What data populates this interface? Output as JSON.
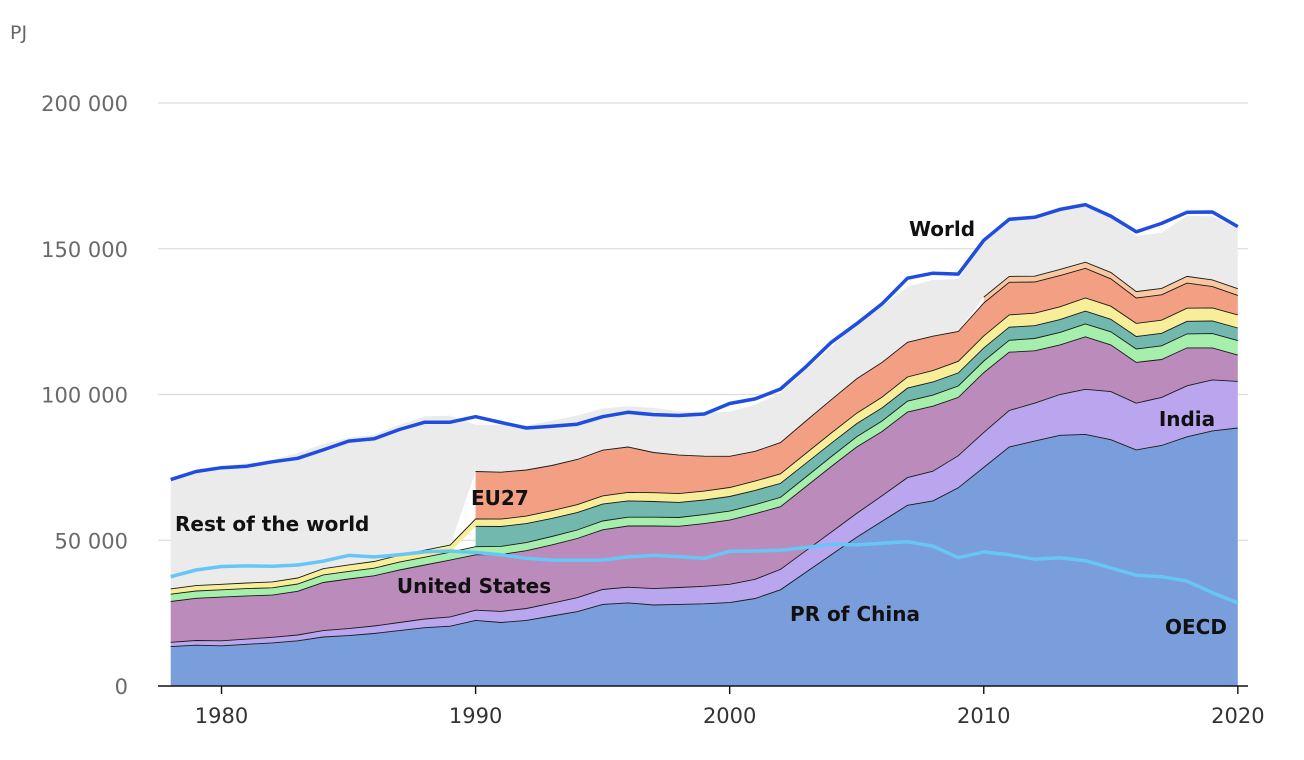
{
  "chart_data": {
    "type": "area",
    "unit": "PJ",
    "x": [
      1978,
      1979,
      1980,
      1981,
      1982,
      1983,
      1984,
      1985,
      1986,
      1987,
      1988,
      1989,
      1990,
      1991,
      1992,
      1993,
      1994,
      1995,
      1996,
      1997,
      1998,
      1999,
      2000,
      2001,
      2002,
      2003,
      2004,
      2005,
      2006,
      2007,
      2008,
      2009,
      2010,
      2011,
      2012,
      2013,
      2014,
      2015,
      2016,
      2017,
      2018,
      2019,
      2020
    ],
    "xticks": [
      "1980",
      "1990",
      "2000",
      "2010",
      "2020"
    ],
    "xlim": [
      1977.5,
      2020.4
    ],
    "ylim": [
      0,
      200000
    ],
    "yticks": [
      {
        "value": 0,
        "label": "0"
      },
      {
        "value": 50000,
        "label": "50 000"
      },
      {
        "value": 100000,
        "label": "100 000"
      },
      {
        "value": 150000,
        "label": "150 000"
      },
      {
        "value": 200000,
        "label": "200 000"
      }
    ],
    "grid": true,
    "stacked_series": [
      {
        "name": "PR of China",
        "color": "#7a9edc",
        "values": [
          13500,
          14000,
          13800,
          14300,
          14800,
          15500,
          16800,
          17300,
          18000,
          19000,
          20000,
          20500,
          22500,
          21800,
          22500,
          24000,
          25500,
          28000,
          28500,
          27800,
          28000,
          28200,
          28600,
          30000,
          33000,
          39000,
          45000,
          51000,
          56500,
          62000,
          63500,
          68000,
          75000,
          82000,
          84000,
          86000,
          86300,
          84500,
          81000,
          82500,
          85500,
          87500,
          88500
        ]
      },
      {
        "name": "India",
        "color": "#b9a6ee",
        "values": [
          1500,
          1600,
          1700,
          1800,
          1900,
          2000,
          2200,
          2400,
          2600,
          2800,
          3000,
          3200,
          3500,
          3800,
          4100,
          4400,
          4800,
          5100,
          5400,
          5600,
          5800,
          6000,
          6300,
          6600,
          7000,
          7400,
          7800,
          8200,
          8800,
          9500,
          10200,
          11000,
          12000,
          12500,
          13000,
          14000,
          15500,
          16500,
          16000,
          16500,
          17500,
          17500,
          16000
        ]
      },
      {
        "name": "United States",
        "color": "#bb8cbb",
        "values": [
          14000,
          14500,
          15000,
          14800,
          14500,
          15000,
          16500,
          17000,
          17200,
          18000,
          18500,
          19500,
          19000,
          19500,
          19800,
          20000,
          20300,
          20500,
          21000,
          21500,
          21000,
          21500,
          22000,
          22500,
          21500,
          22000,
          22500,
          22800,
          22000,
          22500,
          22300,
          20000,
          20500,
          20000,
          18000,
          17000,
          18000,
          16000,
          14000,
          13000,
          13000,
          11000,
          9000
        ]
      },
      {
        "name": "green",
        "color": "#a5eeab",
        "values": [
          2500,
          2500,
          2500,
          2500,
          2500,
          2500,
          2600,
          2600,
          2600,
          2700,
          2700,
          2700,
          2800,
          2800,
          2800,
          2900,
          2900,
          3000,
          3000,
          3000,
          3000,
          3100,
          3100,
          3100,
          3200,
          3300,
          3400,
          3500,
          3600,
          3700,
          3800,
          3900,
          4000,
          4100,
          4200,
          4300,
          4400,
          4500,
          4600,
          4700,
          4800,
          4900,
          5000
        ]
      },
      {
        "name": "teal",
        "color": "#72b8ae",
        "values": [
          0,
          0,
          0,
          0,
          0,
          0,
          0,
          0,
          0,
          0,
          0,
          0,
          7000,
          6800,
          6500,
          6200,
          6000,
          5800,
          5600,
          5400,
          5200,
          5000,
          5000,
          4900,
          4800,
          4700,
          4600,
          4500,
          4500,
          4500,
          4500,
          4500,
          4500,
          4500,
          4400,
          4400,
          4400,
          4300,
          4300,
          4300,
          4300,
          4300,
          4300
        ]
      },
      {
        "name": "yellow",
        "color": "#f8ee9a",
        "values": [
          1800,
          1850,
          1900,
          1950,
          2000,
          2050,
          2150,
          2250,
          2300,
          2350,
          2400,
          2450,
          2500,
          2550,
          2600,
          2650,
          2700,
          2800,
          2900,
          3000,
          3000,
          3050,
          3100,
          3200,
          3300,
          3400,
          3500,
          3600,
          3700,
          3800,
          3900,
          4000,
          4100,
          4200,
          4300,
          4400,
          4500,
          4500,
          4500,
          4500,
          4500,
          4500,
          4500
        ]
      },
      {
        "name": "EU27",
        "color": "#f29f83",
        "values": [
          0,
          0,
          0,
          0,
          0,
          0,
          0,
          0,
          0,
          0,
          0,
          0,
          16300,
          16100,
          15800,
          15500,
          15500,
          15700,
          15600,
          13800,
          13200,
          12000,
          10700,
          10200,
          10700,
          11100,
          11400,
          11800,
          11900,
          11900,
          11800,
          10200,
          11300,
          11200,
          10700,
          10700,
          10200,
          9400,
          8700,
          8700,
          8600,
          7300,
          6700
        ]
      },
      {
        "name": "light-orange",
        "color": "#f8c9a0",
        "values": [
          0,
          0,
          0,
          0,
          0,
          0,
          0,
          0,
          0,
          0,
          0,
          0,
          0,
          0,
          0,
          0,
          0,
          0,
          0,
          0,
          0,
          0,
          0,
          0,
          0,
          0,
          0,
          0,
          0,
          0,
          0,
          0,
          2000,
          2000,
          2000,
          2100,
          2100,
          2200,
          2200,
          2200,
          2300,
          2300,
          2300
        ]
      },
      {
        "name": "Rest of the world",
        "color": "#ebebeb",
        "values": [
          37500,
          39500,
          40500,
          41000,
          42000,
          42800,
          42800,
          43600,
          43500,
          44800,
          45900,
          44400,
          16000,
          16200,
          15300,
          15400,
          15100,
          14300,
          14000,
          15300,
          15000,
          15000,
          15300,
          16000,
          17000,
          17600,
          18200,
          18800,
          19200,
          19100,
          19300,
          18000,
          19500,
          20300,
          20700,
          21100,
          20600,
          18900,
          19100,
          19100,
          20800,
          21800,
          20800
        ]
      }
    ],
    "lines": [
      {
        "name": "World",
        "color": "#1f4de0",
        "values": [
          70800,
          73600,
          74900,
          75400,
          76900,
          78100,
          81000,
          84000,
          84800,
          88000,
          90500,
          90500,
          92400,
          90400,
          88500,
          89100,
          89800,
          92400,
          93900,
          93100,
          92800,
          93300,
          96900,
          98500,
          101900,
          109500,
          117900,
          124300,
          131100,
          139900,
          141600,
          141300,
          152900,
          160100,
          160800,
          163500,
          165100,
          161200,
          155800,
          158700,
          162500,
          162600,
          157600
        ]
      },
      {
        "name": "OECD",
        "color": "#66c6f6",
        "values": [
          37500,
          39800,
          41000,
          41200,
          41100,
          41500,
          42800,
          44800,
          44300,
          45000,
          46000,
          46300,
          45800,
          45000,
          43800,
          43200,
          43200,
          43200,
          44300,
          44800,
          44400,
          43800,
          46200,
          46300,
          46600,
          47500,
          48600,
          48400,
          49000,
          49500,
          48000,
          44000,
          46000,
          45000,
          43500,
          44000,
          43000,
          40500,
          38000,
          37500,
          36000,
          32000,
          28500
        ]
      }
    ],
    "labels": [
      {
        "text": "World",
        "series": "World"
      },
      {
        "text": "Rest of the world",
        "series": "Rest of the world"
      },
      {
        "text": "EU27",
        "series": "EU27"
      },
      {
        "text": "United States",
        "series": "United States"
      },
      {
        "text": "PR of China",
        "series": "PR of China"
      },
      {
        "text": "India",
        "series": "India"
      },
      {
        "text": "OECD",
        "series": "OECD"
      }
    ]
  }
}
